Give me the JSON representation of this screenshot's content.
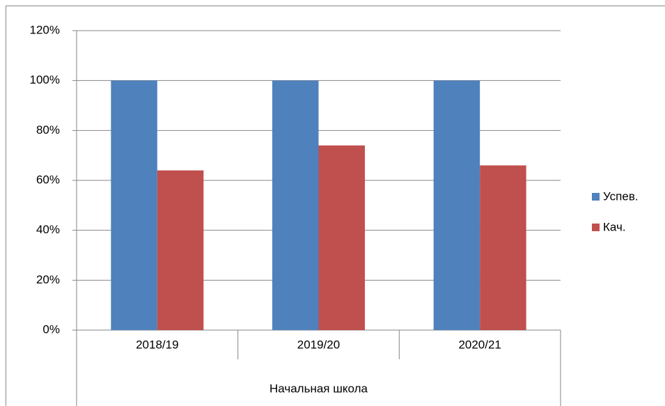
{
  "chart_data": {
    "type": "bar",
    "categories": [
      "2018/19",
      "2019/20",
      "2020/21"
    ],
    "category_group": "Начальная школа",
    "series": [
      {
        "name": "Успев.",
        "color": "#4f81bd",
        "values": [
          100,
          100,
          100
        ]
      },
      {
        "name": "Кач.",
        "color": "#c0504d",
        "values": [
          64,
          74,
          66
        ]
      }
    ],
    "ylim": [
      0,
      120
    ],
    "yticks": [
      {
        "value": 0,
        "label": "0%"
      },
      {
        "value": 20,
        "label": "20%"
      },
      {
        "value": 40,
        "label": "40%"
      },
      {
        "value": 60,
        "label": "60%"
      },
      {
        "value": 80,
        "label": "80%"
      },
      {
        "value": 100,
        "label": "100%"
      },
      {
        "value": 120,
        "label": "120%"
      }
    ],
    "grid": true,
    "legend": "right"
  }
}
